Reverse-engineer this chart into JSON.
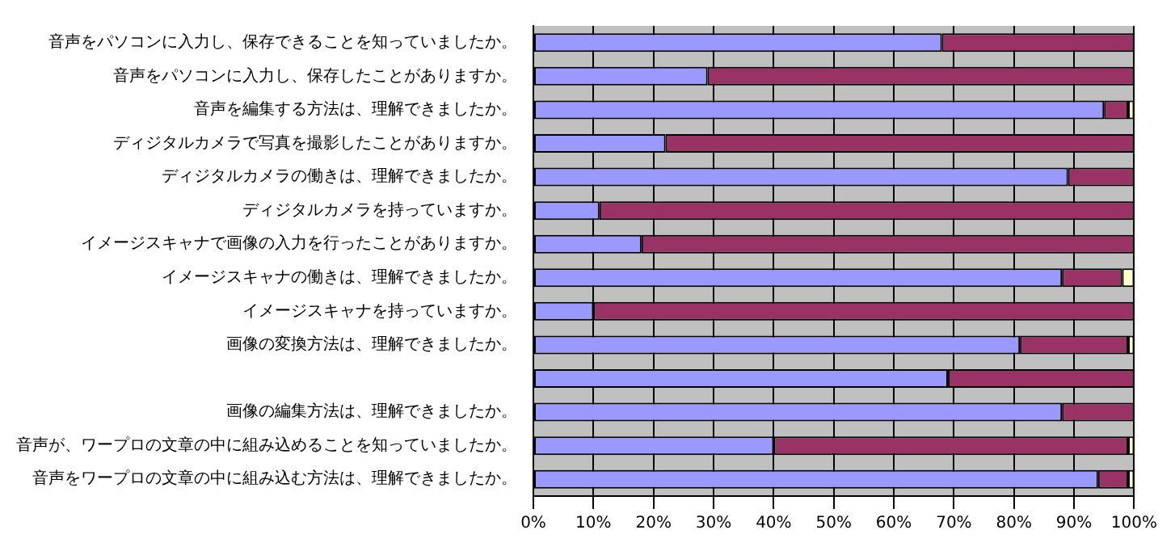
{
  "chart_data": {
    "type": "bar",
    "orientation": "horizontal",
    "stacked": true,
    "categories": [
      "音声をパソコンに入力し、保存できることを知っていましたか。",
      "音声をパソコンに入力し、保存したことがありますか。",
      "音声を編集する方法は、理解できましたか。",
      "ディジタルカメラで写真を撮影したことがありますか。",
      "ディジタルカメラの働きは、理解できましたか。",
      "ディジタルカメラを持っていますか。",
      "イメージスキャナで画像の入力を行ったことがありますか。",
      "イメージスキャナの働きは、理解できましたか。",
      "イメージスキャナを持っていますか。",
      "画像の変換方法は、理解できましたか。",
      null,
      "画像の編集方法は、理解できましたか。",
      "音声が、ワープロの文章の中に組み込めることを知っていましたか。",
      "音声をワープロの文章の中に組み込む方法は、理解できましたか。"
    ],
    "series": [
      {
        "color": "#9999ff",
        "values": [
          68,
          29,
          95,
          22,
          89,
          11,
          18,
          88,
          10,
          81,
          69,
          88,
          40,
          94
        ]
      },
      {
        "color": "#993366",
        "values": [
          32,
          71,
          4,
          78,
          11,
          89,
          82,
          10,
          90,
          18,
          31,
          12,
          59,
          5
        ]
      },
      {
        "color": "#ffffcc",
        "values": [
          0,
          0,
          1,
          0,
          0,
          0,
          0,
          2,
          0,
          1,
          0,
          0,
          1,
          1
        ]
      }
    ],
    "xlim": [
      0,
      100
    ],
    "xticks": [
      {
        "value": 0,
        "label": "0%"
      },
      {
        "value": 10,
        "label": "10%"
      },
      {
        "value": 20,
        "label": "20%"
      },
      {
        "value": 30,
        "label": "30%"
      },
      {
        "value": 40,
        "label": "40%"
      },
      {
        "value": 50,
        "label": "50%"
      },
      {
        "value": 60,
        "label": "60%"
      },
      {
        "value": 70,
        "label": "70%"
      },
      {
        "value": 80,
        "label": "80%"
      },
      {
        "value": 90,
        "label": "90%"
      },
      {
        "value": 100,
        "label": "100%"
      }
    ],
    "grid": "x",
    "legend": false
  }
}
